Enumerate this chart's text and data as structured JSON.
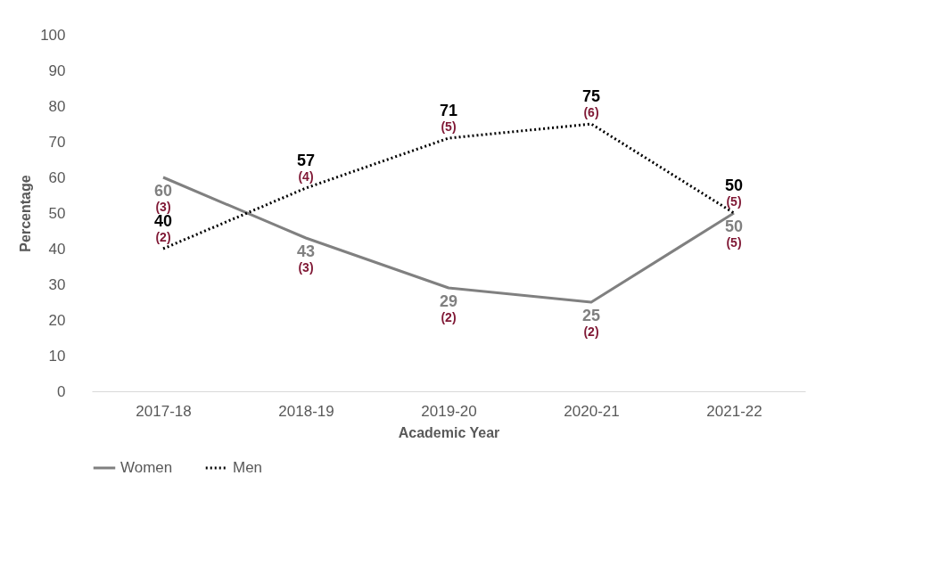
{
  "chart_data": {
    "type": "line",
    "xlabel": "Academic Year",
    "ylabel": "Percentage",
    "categories": [
      "2017-18",
      "2018-19",
      "2019-20",
      "2020-21",
      "2021-22"
    ],
    "series": [
      {
        "name": "Women",
        "color": "#808080",
        "line_style": "solid",
        "values": [
          60,
          43,
          29,
          25,
          50
        ]
      },
      {
        "name": "Men",
        "color": "#000000",
        "line_style": "dotted",
        "values": [
          40,
          57,
          71,
          75,
          50
        ]
      }
    ],
    "ylim": [
      0,
      100
    ],
    "yticks": [
      0,
      10,
      20,
      30,
      40,
      50,
      60,
      70,
      80,
      90,
      100
    ],
    "grid": false,
    "legend": "bottom",
    "marker": "none",
    "data_labels": true,
    "annotations": [
      {
        "text": "(3)",
        "x": "2017-18",
        "y": 60
      },
      {
        "text": "(3)",
        "x": "2018-19",
        "y": 43
      },
      {
        "text": "(2)",
        "x": "2019-20",
        "y": 29
      },
      {
        "text": "(2)",
        "x": "2020-21",
        "y": 25
      },
      {
        "text": "(5)",
        "x": "2021-22",
        "y": 50
      },
      {
        "text": "(2)",
        "x": "2017-18",
        "y": 40
      },
      {
        "text": "(4)",
        "x": "2018-19",
        "y": 57
      },
      {
        "text": "(5)",
        "x": "2019-20",
        "y": 71
      },
      {
        "text": "(6)",
        "x": "2020-21",
        "y": 75
      },
      {
        "text": "(5)",
        "x": "2021-22",
        "y": 50
      }
    ]
  }
}
